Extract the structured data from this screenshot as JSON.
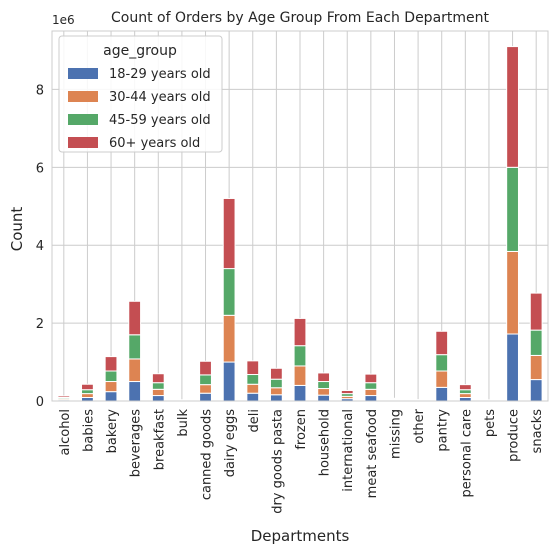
{
  "chart_data": {
    "type": "bar",
    "stacked": true,
    "title": "Count of Orders by Age Group From Each Department",
    "xlabel": "Departments",
    "ylabel": "Count",
    "y_scale_label": "1e6",
    "ylim": [
      0,
      9.5
    ],
    "y_ticks": [
      0,
      2,
      4,
      6,
      8
    ],
    "y_tick_labels": [
      "0",
      "2",
      "4",
      "6",
      "8"
    ],
    "grid": true,
    "legend_title": "age_group",
    "legend_position": "top-left",
    "categories": [
      "alcohol",
      "babies",
      "bakery",
      "beverages",
      "breakfast",
      "bulk",
      "canned goods",
      "dairy eggs",
      "deli",
      "dry goods pasta",
      "frozen",
      "household",
      "international",
      "meat seafood",
      "missing",
      "other",
      "pantry",
      "personal care",
      "pets",
      "produce",
      "snacks"
    ],
    "series": [
      {
        "name": "18-29 years old",
        "color": "#4c72b0",
        "values": [
          0.03,
          0.09,
          0.24,
          0.5,
          0.14,
          0.008,
          0.2,
          1.0,
          0.2,
          0.16,
          0.4,
          0.15,
          0.06,
          0.14,
          0.016,
          0.008,
          0.35,
          0.09,
          0.007,
          1.72,
          0.55
        ]
      },
      {
        "name": "30-44 years old",
        "color": "#dd8452",
        "values": [
          0.03,
          0.1,
          0.26,
          0.58,
          0.16,
          0.008,
          0.22,
          1.2,
          0.23,
          0.18,
          0.5,
          0.17,
          0.06,
          0.16,
          0.016,
          0.008,
          0.42,
          0.1,
          0.007,
          2.12,
          0.62
        ]
      },
      {
        "name": "45-59 years old",
        "color": "#55a868",
        "values": [
          0.03,
          0.1,
          0.27,
          0.62,
          0.17,
          0.008,
          0.25,
          1.2,
          0.25,
          0.22,
          0.52,
          0.18,
          0.07,
          0.17,
          0.018,
          0.01,
          0.42,
          0.1,
          0.007,
          2.16,
          0.65
        ]
      },
      {
        "name": "60+ years old",
        "color": "#c44e52",
        "values": [
          0.04,
          0.14,
          0.37,
          0.86,
          0.23,
          0.008,
          0.35,
          1.8,
          0.35,
          0.28,
          0.7,
          0.22,
          0.08,
          0.22,
          0.02,
          0.01,
          0.6,
          0.13,
          0.009,
          3.1,
          0.95
        ]
      }
    ]
  }
}
